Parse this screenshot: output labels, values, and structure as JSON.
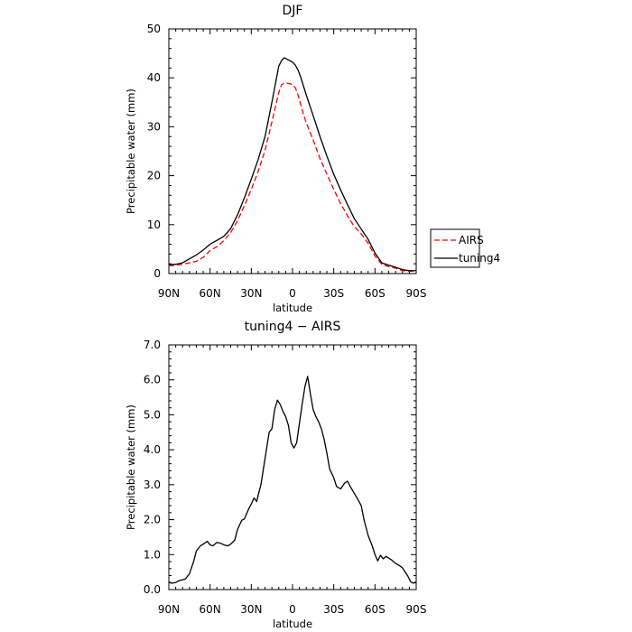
{
  "chart_data": [
    {
      "type": "line",
      "title": "DJF",
      "xlabel": "latitude",
      "ylabel": "Precipitable water (mm)",
      "xlim": [
        90,
        -90
      ],
      "ylim": [
        0,
        50
      ],
      "x_ticks": [
        90,
        60,
        30,
        0,
        -30,
        -60,
        -90
      ],
      "x_tick_labels": [
        "90N",
        "60N",
        "30N",
        "0",
        "30S",
        "60S",
        "90S"
      ],
      "y_ticks": [
        0,
        10,
        20,
        30,
        40,
        50
      ],
      "y_tick_labels": [
        "0",
        "10",
        "20",
        "30",
        "40",
        "50"
      ],
      "grid": false,
      "legend_position": "right",
      "series": [
        {
          "name": "AIRS",
          "color": "#ff0000",
          "dash": "dashed",
          "x": [
            90,
            85,
            80,
            75,
            70,
            65,
            60,
            55,
            50,
            45,
            40,
            35,
            30,
            25,
            20,
            15,
            10,
            8,
            6,
            4,
            2,
            0,
            -2,
            -4,
            -6,
            -8,
            -10,
            -15,
            -20,
            -25,
            -30,
            -35,
            -40,
            -45,
            -50,
            -55,
            -60,
            -65,
            -70,
            -75,
            -80,
            -85,
            -90
          ],
          "y": [
            1.6,
            1.7,
            1.9,
            2.2,
            2.5,
            3.3,
            4.7,
            5.5,
            6.7,
            8.4,
            10.8,
            13.9,
            17.2,
            20.9,
            25.2,
            31.0,
            37.0,
            38.6,
            38.9,
            38.9,
            38.8,
            38.6,
            38.0,
            36.5,
            34.5,
            32.5,
            30.8,
            27.3,
            23.5,
            20.3,
            17.2,
            14.3,
            11.8,
            9.6,
            8.1,
            6.2,
            3.6,
            1.9,
            1.4,
            1.1,
            0.6,
            0.5,
            0.5
          ]
        },
        {
          "name": "tuning4",
          "color": "#000000",
          "dash": "solid",
          "x": [
            90,
            85,
            80,
            75,
            70,
            65,
            60,
            55,
            50,
            45,
            40,
            35,
            30,
            25,
            20,
            15,
            10,
            8,
            6,
            4,
            2,
            0,
            -2,
            -4,
            -6,
            -8,
            -10,
            -15,
            -20,
            -25,
            -30,
            -35,
            -40,
            -45,
            -50,
            -55,
            -60,
            -65,
            -70,
            -75,
            -80,
            -85,
            -90
          ],
          "y": [
            1.8,
            1.9,
            2.2,
            3.0,
            3.8,
            4.8,
            6.0,
            6.8,
            7.6,
            9.2,
            12.0,
            15.5,
            19.3,
            23.3,
            28.0,
            35.0,
            42.4,
            43.5,
            44.1,
            43.8,
            43.5,
            43.2,
            42.6,
            41.6,
            40.1,
            38.3,
            36.5,
            32.3,
            28.0,
            24.0,
            20.3,
            17.1,
            14.1,
            11.2,
            9.1,
            7.0,
            4.2,
            2.2,
            1.7,
            1.3,
            0.8,
            0.6,
            0.6
          ]
        }
      ]
    },
    {
      "type": "line",
      "title": "tuning4 − AIRS",
      "xlabel": "latitude",
      "ylabel": "Precipitable water (mm)",
      "xlim": [
        90,
        -90
      ],
      "ylim": [
        0,
        7
      ],
      "x_ticks": [
        90,
        60,
        30,
        0,
        -30,
        -60,
        -90
      ],
      "x_tick_labels": [
        "90N",
        "60N",
        "30N",
        "0",
        "30S",
        "60S",
        "90S"
      ],
      "y_ticks": [
        0,
        1,
        2,
        3,
        4,
        5,
        6,
        7
      ],
      "y_tick_labels": [
        "0.0",
        "1.0",
        "2.0",
        "3.0",
        "4.0",
        "5.0",
        "6.0",
        "7.0"
      ],
      "grid": false,
      "series": [
        {
          "color": "#000000",
          "dash": "solid",
          "x": [
            90,
            88,
            85,
            83,
            80,
            78,
            75,
            72,
            70,
            67,
            65,
            62,
            60,
            58,
            55,
            52,
            50,
            47,
            45,
            42,
            40,
            37,
            35,
            32,
            30,
            28,
            26,
            25,
            23,
            21,
            19,
            17,
            15,
            13,
            11,
            9,
            7,
            5,
            3,
            1,
            -1,
            -3,
            -5,
            -7,
            -9,
            -11,
            -13,
            -15,
            -17,
            -19,
            -21,
            -23,
            -25,
            -27,
            -30,
            -32,
            -35,
            -38,
            -40,
            -42,
            -45,
            -48,
            -50,
            -52,
            -55,
            -58,
            -60,
            -62,
            -64,
            -66,
            -68,
            -70,
            -72,
            -75,
            -78,
            -80,
            -82,
            -84,
            -86,
            -88,
            -90
          ],
          "y": [
            0.22,
            0.18,
            0.2,
            0.25,
            0.28,
            0.3,
            0.45,
            0.8,
            1.1,
            1.25,
            1.3,
            1.38,
            1.28,
            1.25,
            1.35,
            1.32,
            1.28,
            1.25,
            1.3,
            1.42,
            1.72,
            1.98,
            2.02,
            2.3,
            2.45,
            2.62,
            2.52,
            2.7,
            3.0,
            3.5,
            4.0,
            4.5,
            4.6,
            5.15,
            5.42,
            5.3,
            5.1,
            4.95,
            4.7,
            4.2,
            4.05,
            4.2,
            4.75,
            5.3,
            5.8,
            6.1,
            5.6,
            5.15,
            4.95,
            4.8,
            4.6,
            4.3,
            3.9,
            3.45,
            3.2,
            2.95,
            2.88,
            3.05,
            3.1,
            2.95,
            2.75,
            2.55,
            2.4,
            2.0,
            1.55,
            1.25,
            1.0,
            0.82,
            0.98,
            0.88,
            0.95,
            0.9,
            0.85,
            0.75,
            0.68,
            0.62,
            0.5,
            0.38,
            0.22,
            0.18,
            0.22
          ]
        }
      ]
    }
  ]
}
